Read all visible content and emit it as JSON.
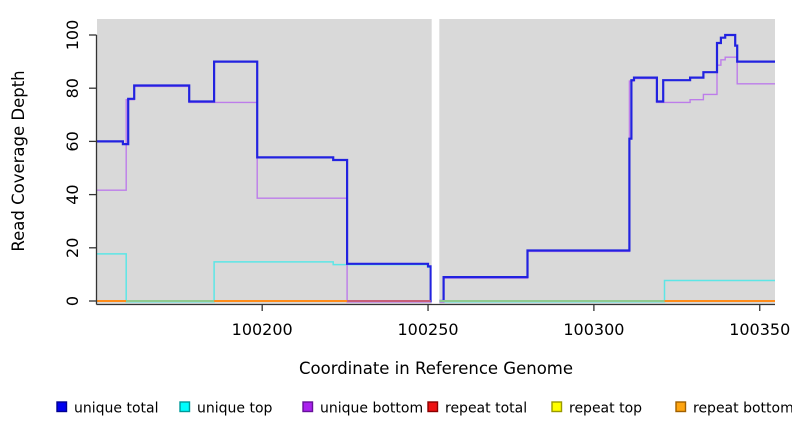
{
  "chart_data": {
    "type": "step-line",
    "title": "",
    "xlabel": "Coordinate in Reference Genome",
    "ylabel": "Read Coverage Depth",
    "x_ticks": [
      100200,
      100250,
      100300,
      100350
    ],
    "y_ticks": [
      0,
      20,
      40,
      60,
      80,
      100
    ],
    "xlim": [
      100150.2,
      100354.6
    ],
    "ylim": [
      0,
      104
    ],
    "grid": "off",
    "plot_background": "#d9d9d9",
    "no_data_gap": {
      "x0": 100251.1,
      "x1": 100253.4
    },
    "series": [
      {
        "name": "unique top",
        "color": "#5ce6e6",
        "width": 1.5,
        "dy": 0.8,
        "points": [
          [
            100150.2,
            18
          ],
          [
            100159,
            18
          ],
          [
            100159,
            0
          ],
          [
            100185.5,
            0
          ],
          [
            100185.5,
            15
          ],
          [
            100221.4,
            15
          ],
          [
            100221.4,
            14
          ],
          [
            100250,
            14
          ],
          [
            100250,
            13
          ],
          [
            100250.8,
            13
          ],
          [
            100250.8,
            0
          ],
          [
            100321.3,
            0
          ],
          [
            100321.3,
            8
          ],
          [
            100354.6,
            8
          ]
        ]
      },
      {
        "name": "unique bottom",
        "color": "#bd7cea",
        "width": 1.4,
        "dy": 0.9,
        "points": [
          [
            100150.2,
            42
          ],
          [
            100159,
            42
          ],
          [
            100159,
            76
          ],
          [
            100161.4,
            76
          ],
          [
            100161.4,
            81
          ],
          [
            100178,
            81
          ],
          [
            100178,
            75
          ],
          [
            100198.5,
            75
          ],
          [
            100198.5,
            39
          ],
          [
            100225.6,
            39
          ],
          [
            100225.6,
            0
          ],
          [
            100254.7,
            0
          ],
          [
            100254.7,
            9
          ],
          [
            100280,
            9
          ],
          [
            100280,
            19
          ],
          [
            100310.7,
            19
          ],
          [
            100310.7,
            83
          ],
          [
            100312.1,
            83
          ],
          [
            100312.1,
            84
          ],
          [
            100319,
            84
          ],
          [
            100319,
            75
          ],
          [
            100329,
            75
          ],
          [
            100329,
            76
          ],
          [
            100333,
            76
          ],
          [
            100333,
            78
          ],
          [
            100337.1,
            78
          ],
          [
            100337.1,
            89
          ],
          [
            100338.3,
            89
          ],
          [
            100338.3,
            91
          ],
          [
            100339.6,
            91
          ],
          [
            100339.6,
            92
          ],
          [
            100343.2,
            92
          ],
          [
            100343.2,
            82
          ],
          [
            100354.6,
            82
          ]
        ]
      },
      {
        "name": "unique total",
        "color": "#2222e0",
        "width": 2.2,
        "dy": 0,
        "points": [
          [
            100150.2,
            60
          ],
          [
            100158,
            60
          ],
          [
            100158,
            59
          ],
          [
            100159.6,
            59
          ],
          [
            100159.6,
            76
          ],
          [
            100161.4,
            76
          ],
          [
            100161.4,
            81
          ],
          [
            100178,
            81
          ],
          [
            100178,
            75
          ],
          [
            100185.5,
            75
          ],
          [
            100185.5,
            90
          ],
          [
            100198.5,
            90
          ],
          [
            100198.5,
            54
          ],
          [
            100221.4,
            54
          ],
          [
            100221.4,
            53
          ],
          [
            100225.6,
            53
          ],
          [
            100225.6,
            14
          ],
          [
            100250,
            14
          ],
          [
            100250,
            13
          ],
          [
            100250.8,
            13
          ],
          [
            100250.8,
            0
          ],
          [
            100254.7,
            0
          ],
          [
            100254.7,
            9
          ],
          [
            100280,
            9
          ],
          [
            100280,
            19
          ],
          [
            100310.7,
            19
          ],
          [
            100310.7,
            61
          ],
          [
            100311.3,
            61
          ],
          [
            100311.3,
            83
          ],
          [
            100312.1,
            83
          ],
          [
            100312.1,
            84
          ],
          [
            100319,
            84
          ],
          [
            100319,
            75
          ],
          [
            100320.9,
            75
          ],
          [
            100320.9,
            83
          ],
          [
            100329,
            83
          ],
          [
            100329,
            84
          ],
          [
            100333,
            84
          ],
          [
            100333,
            86
          ],
          [
            100337.1,
            86
          ],
          [
            100337.1,
            97
          ],
          [
            100338.3,
            97
          ],
          [
            100338.3,
            99
          ],
          [
            100339.6,
            99
          ],
          [
            100339.6,
            100
          ],
          [
            100342.6,
            100
          ],
          [
            100342.6,
            96
          ],
          [
            100343.2,
            96
          ],
          [
            100343.2,
            90
          ],
          [
            100354.6,
            90
          ]
        ]
      },
      {
        "name": "repeat total",
        "color": "#dd2222",
        "width": 1.4,
        "dy": 0,
        "render": false,
        "points": [
          [
            100150.2,
            0
          ],
          [
            100354.6,
            0
          ]
        ]
      },
      {
        "name": "repeat top",
        "color": "#f2f20a",
        "width": 1.4,
        "dy": 0,
        "render": false,
        "points": [
          [
            100150.2,
            0
          ],
          [
            100354.6,
            0
          ]
        ]
      },
      {
        "name": "repeat bottom",
        "color": "#ff8c1a",
        "width": 1.8,
        "dy": 0,
        "render": false,
        "points": [
          [
            100150.2,
            0
          ],
          [
            100354.6,
            0
          ]
        ]
      }
    ],
    "baseline_blend_segments": [
      {
        "x0": 100150.2,
        "x1": 100159.0,
        "color": "#ff8c1a"
      },
      {
        "x0": 100159.0,
        "x1": 100185.5,
        "color": "#8fca8f"
      },
      {
        "x0": 100185.5,
        "x1": 100225.6,
        "color": "#ff8c1a"
      },
      {
        "x0": 100225.6,
        "x1": 100250.8,
        "color": "#c75e79"
      },
      {
        "x0": 100253.4,
        "x1": 100321.3,
        "color": "#8fca8f"
      },
      {
        "x0": 100321.3,
        "x1": 100354.6,
        "color": "#ff8c1a"
      }
    ],
    "legend": [
      {
        "label": "unique total",
        "fill": "#0000f0",
        "border": "#000090"
      },
      {
        "label": "unique top",
        "fill": "#00ffff",
        "border": "#009999"
      },
      {
        "label": "unique bottom",
        "fill": "#aa22ee",
        "border": "#661199"
      },
      {
        "label": "repeat total",
        "fill": "#ee1111",
        "border": "#880000"
      },
      {
        "label": "repeat top",
        "fill": "#ffff00",
        "border": "#999900"
      },
      {
        "label": "repeat bottom",
        "fill": "#ffa510",
        "border": "#a06000"
      }
    ],
    "legend_position": "bottom"
  }
}
